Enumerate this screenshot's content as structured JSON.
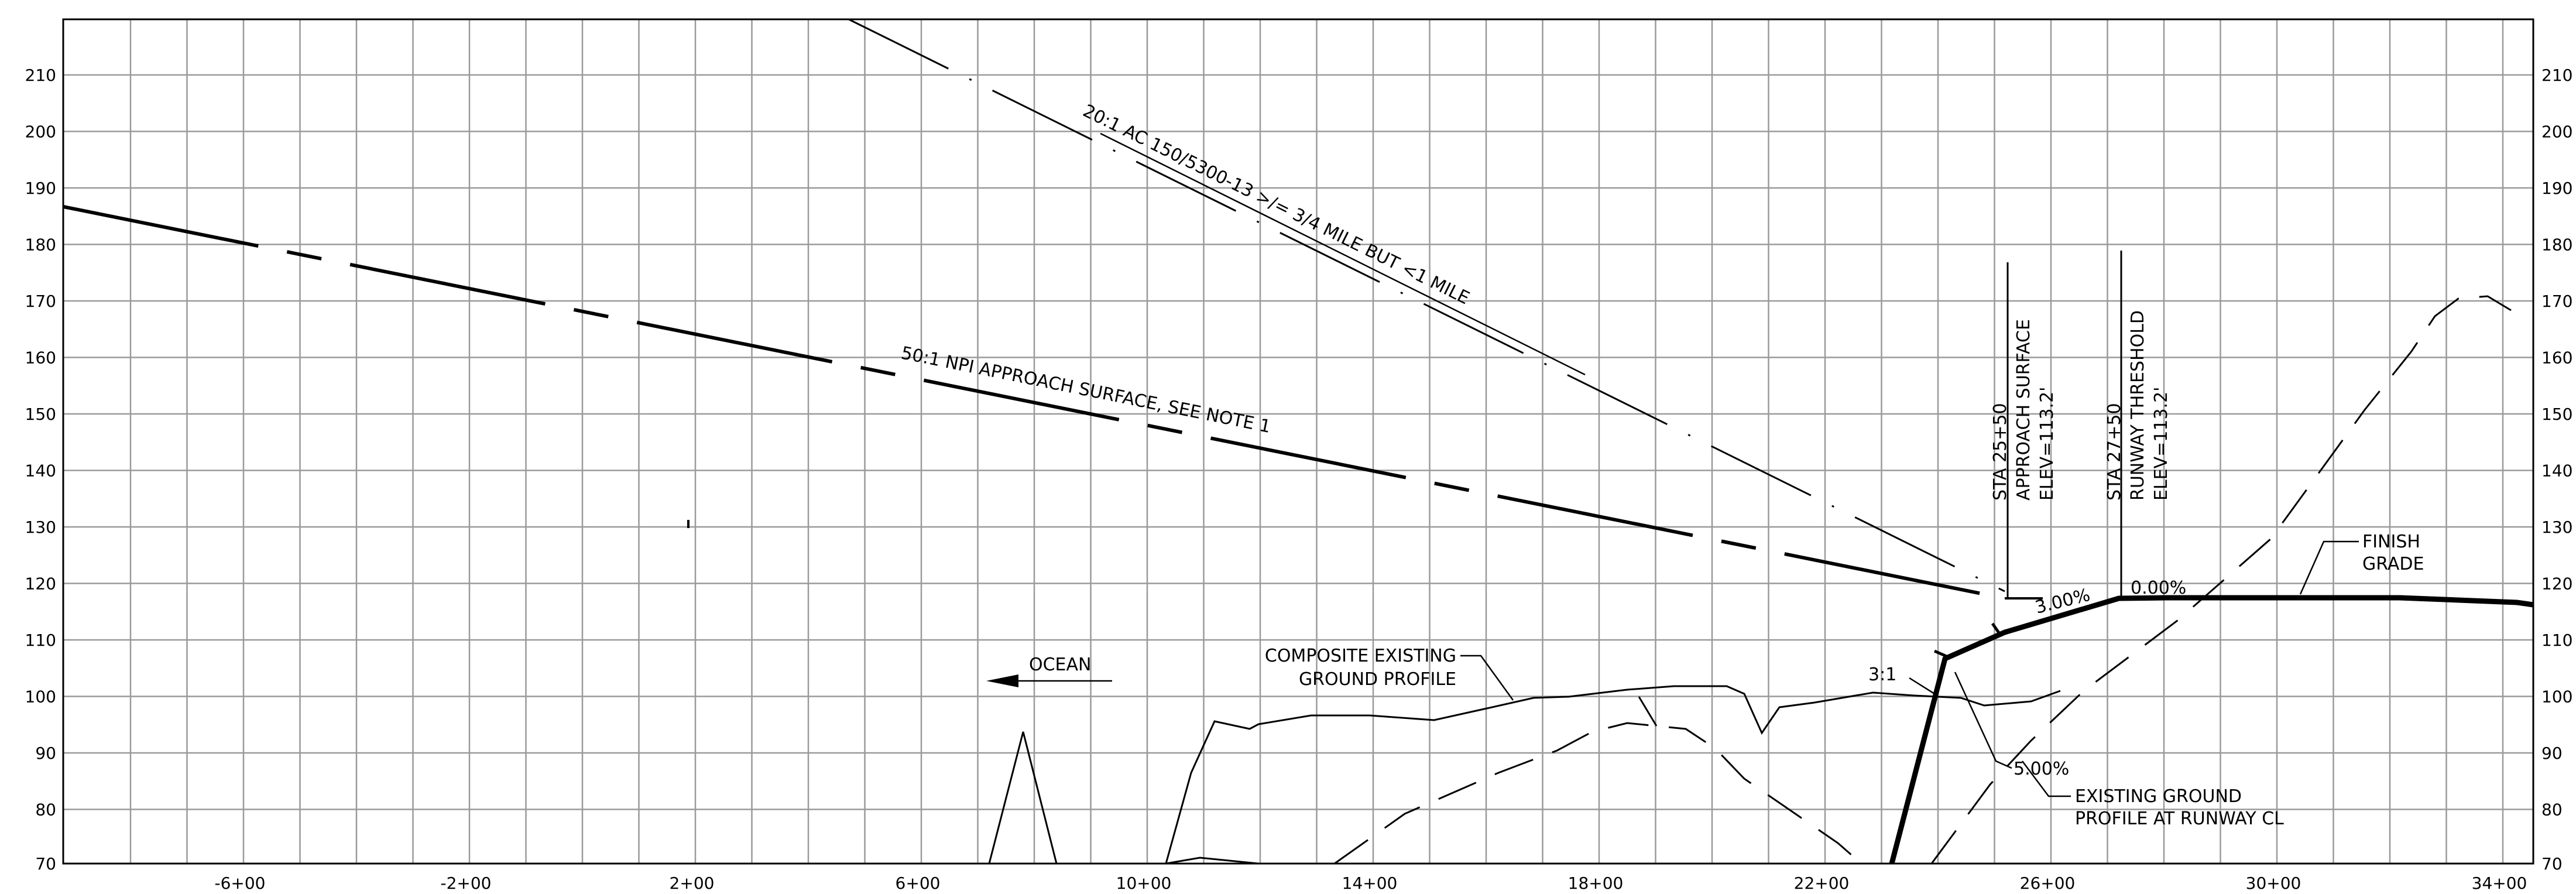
{
  "drawing": {
    "axes": {
      "x_ticks": [
        "-6+00",
        "-2+00",
        "2+00",
        "6+00",
        "10+00",
        "14+00",
        "18+00",
        "22+00",
        "26+00",
        "30+00",
        "34+00"
      ],
      "y_ticks": [
        "210",
        "200",
        "190",
        "180",
        "170",
        "160",
        "150",
        "140",
        "130",
        "120",
        "110",
        "100",
        "90",
        "80",
        "70"
      ],
      "grid": true
    },
    "labels": {
      "surface_20_1": "20:1 AC 150/5300-13 >/= 3/4 MILE BUT <1 MILE",
      "surface_50_1": "50:1 NPI APPROACH SURFACE, SEE NOTE 1",
      "approach_sta": "STA 25+50",
      "approach_name": "APPROACH SURFACE",
      "approach_elev": "ELEV=113.2'",
      "threshold_sta": "STA 27+50",
      "threshold_name": "RUNWAY THRESHOLD",
      "threshold_elev": "ELEV=113.2'",
      "finish_grade_1": "FINISH",
      "finish_grade_2": "GRADE",
      "composite_1": "COMPOSITE EXISTING",
      "composite_2": "GROUND PROFILE",
      "existing_1": "EXISTING GROUND",
      "existing_2": "PROFILE AT RUNWAY CL",
      "ocean": "OCEAN",
      "grade_3pct": "3.00%",
      "grade_0pct": "0.00%",
      "grade_5pct": "5.00%",
      "slope_3_1": "3:1"
    }
  }
}
